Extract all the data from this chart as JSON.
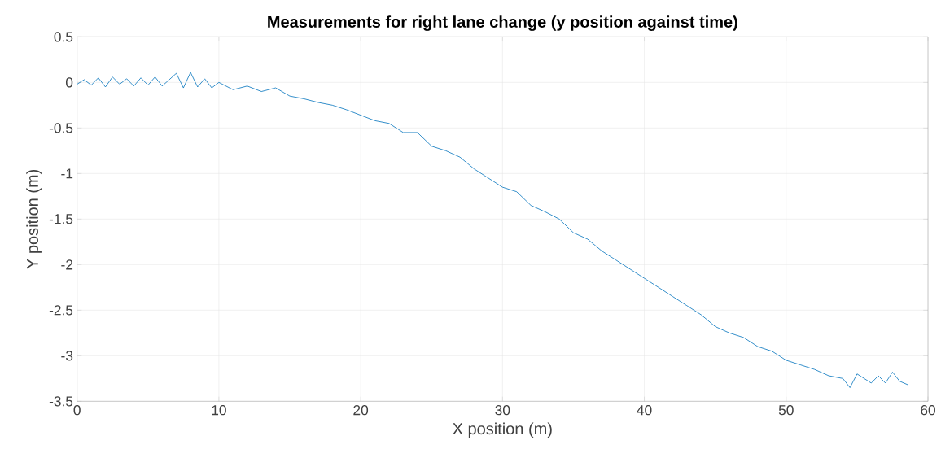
{
  "chart_data": {
    "type": "line",
    "title": "**Measurements for right lane change (y position against time)**",
    "xlabel": "X position (m)",
    "ylabel": "Y position (m)",
    "x": [
      0,
      0.5,
      1,
      1.5,
      2,
      2.5,
      3,
      3.5,
      4,
      4.5,
      5,
      5.5,
      6,
      6.5,
      7,
      7.5,
      8,
      8.5,
      9,
      9.5,
      10,
      11,
      12,
      13,
      14,
      15,
      16,
      17,
      18,
      19,
      20,
      21,
      22,
      23,
      24,
      25,
      26,
      27,
      28,
      29,
      30,
      31,
      32,
      33,
      34,
      35,
      36,
      37,
      38,
      39,
      40,
      41,
      42,
      43,
      44,
      45,
      46,
      47,
      48,
      49,
      50,
      51,
      52,
      53,
      54,
      54.5,
      55,
      56,
      56.5,
      57,
      57.5,
      58,
      58.6
    ],
    "series": [
      {
        "color": "#0072bd",
        "values": [
          -0.02,
          0.03,
          -0.03,
          0.05,
          -0.05,
          0.06,
          -0.02,
          0.04,
          -0.04,
          0.05,
          -0.03,
          0.06,
          -0.04,
          0.03,
          0.1,
          -0.06,
          0.11,
          -0.05,
          0.04,
          -0.06,
          0.0,
          -0.08,
          -0.04,
          -0.1,
          -0.06,
          -0.15,
          -0.18,
          -0.22,
          -0.25,
          -0.3,
          -0.36,
          -0.42,
          -0.45,
          -0.55,
          -0.55,
          -0.7,
          -0.75,
          -0.82,
          -0.95,
          -1.05,
          -1.15,
          -1.2,
          -1.35,
          -1.42,
          -1.5,
          -1.65,
          -1.72,
          -1.85,
          -1.95,
          -2.05,
          -2.15,
          -2.25,
          -2.35,
          -2.45,
          -2.55,
          -2.68,
          -2.75,
          -2.8,
          -2.9,
          -2.95,
          -3.05,
          -3.1,
          -3.15,
          -3.22,
          -3.25,
          -3.35,
          -3.2,
          -3.3,
          -3.22,
          -3.3,
          -3.18,
          -3.28,
          -3.32
        ]
      }
    ],
    "xlim": [
      0,
      60
    ],
    "ylim": [
      -3.5,
      0.5
    ],
    "xticks": [
      0,
      10,
      20,
      30,
      40,
      50,
      60
    ],
    "yticks": [
      -3.5,
      -3,
      -2.5,
      -2,
      -1.5,
      -1,
      -0.5,
      0,
      0.5
    ],
    "grid": true,
    "legend": false
  }
}
